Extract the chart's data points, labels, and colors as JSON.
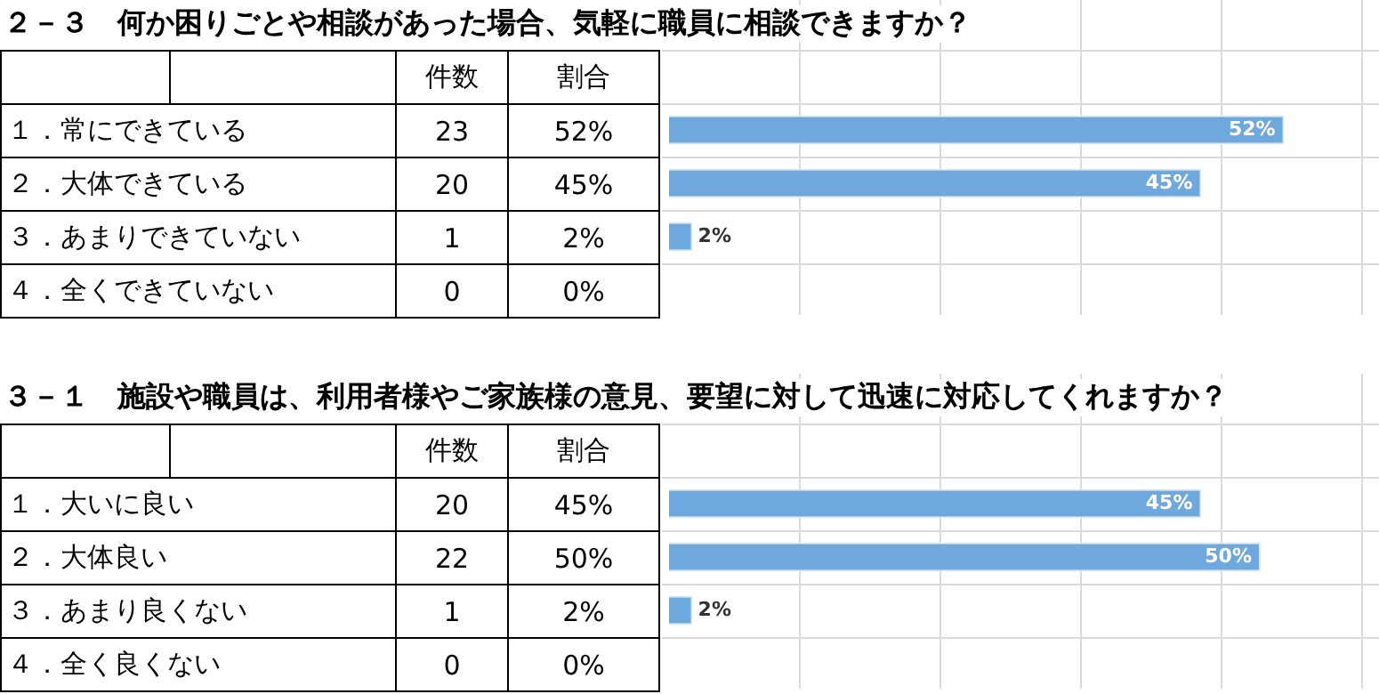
{
  "chart_data": [
    {
      "type": "bar",
      "orientation": "horizontal",
      "title": "２－３　何か困りごとや相談があった場合、気軽に職員に相談できますか？",
      "categories": [
        "１．常にできている",
        "２．大体できている",
        "３．あまりできていない",
        "４．全くできていない"
      ],
      "series": [
        {
          "name": "割合",
          "color": "#6fa8dc",
          "values": [
            52,
            45,
            2,
            0
          ],
          "value_labels": [
            "52%",
            "45%",
            "2%",
            "0%"
          ]
        }
      ],
      "xlim": [
        0,
        60
      ],
      "annotations": [
        "件数",
        "23",
        "20",
        "1",
        "0"
      ]
    },
    {
      "type": "bar",
      "orientation": "horizontal",
      "title": "３－１　施設や職員は、利用者様やご家族様の意見、要望に対して迅速に対応してくれますか？",
      "categories": [
        "１．大いに良い",
        "２．大体良い",
        "３．あまり良くない",
        "４．全く良くない"
      ],
      "series": [
        {
          "name": "割合",
          "color": "#6fa8dc",
          "values": [
            45,
            50,
            2,
            0
          ],
          "value_labels": [
            "45%",
            "50%",
            "2%",
            "0%"
          ]
        }
      ],
      "xlim": [
        0,
        60
      ],
      "annotations": [
        "件数",
        "20",
        "22",
        "1",
        "0"
      ]
    }
  ]
}
